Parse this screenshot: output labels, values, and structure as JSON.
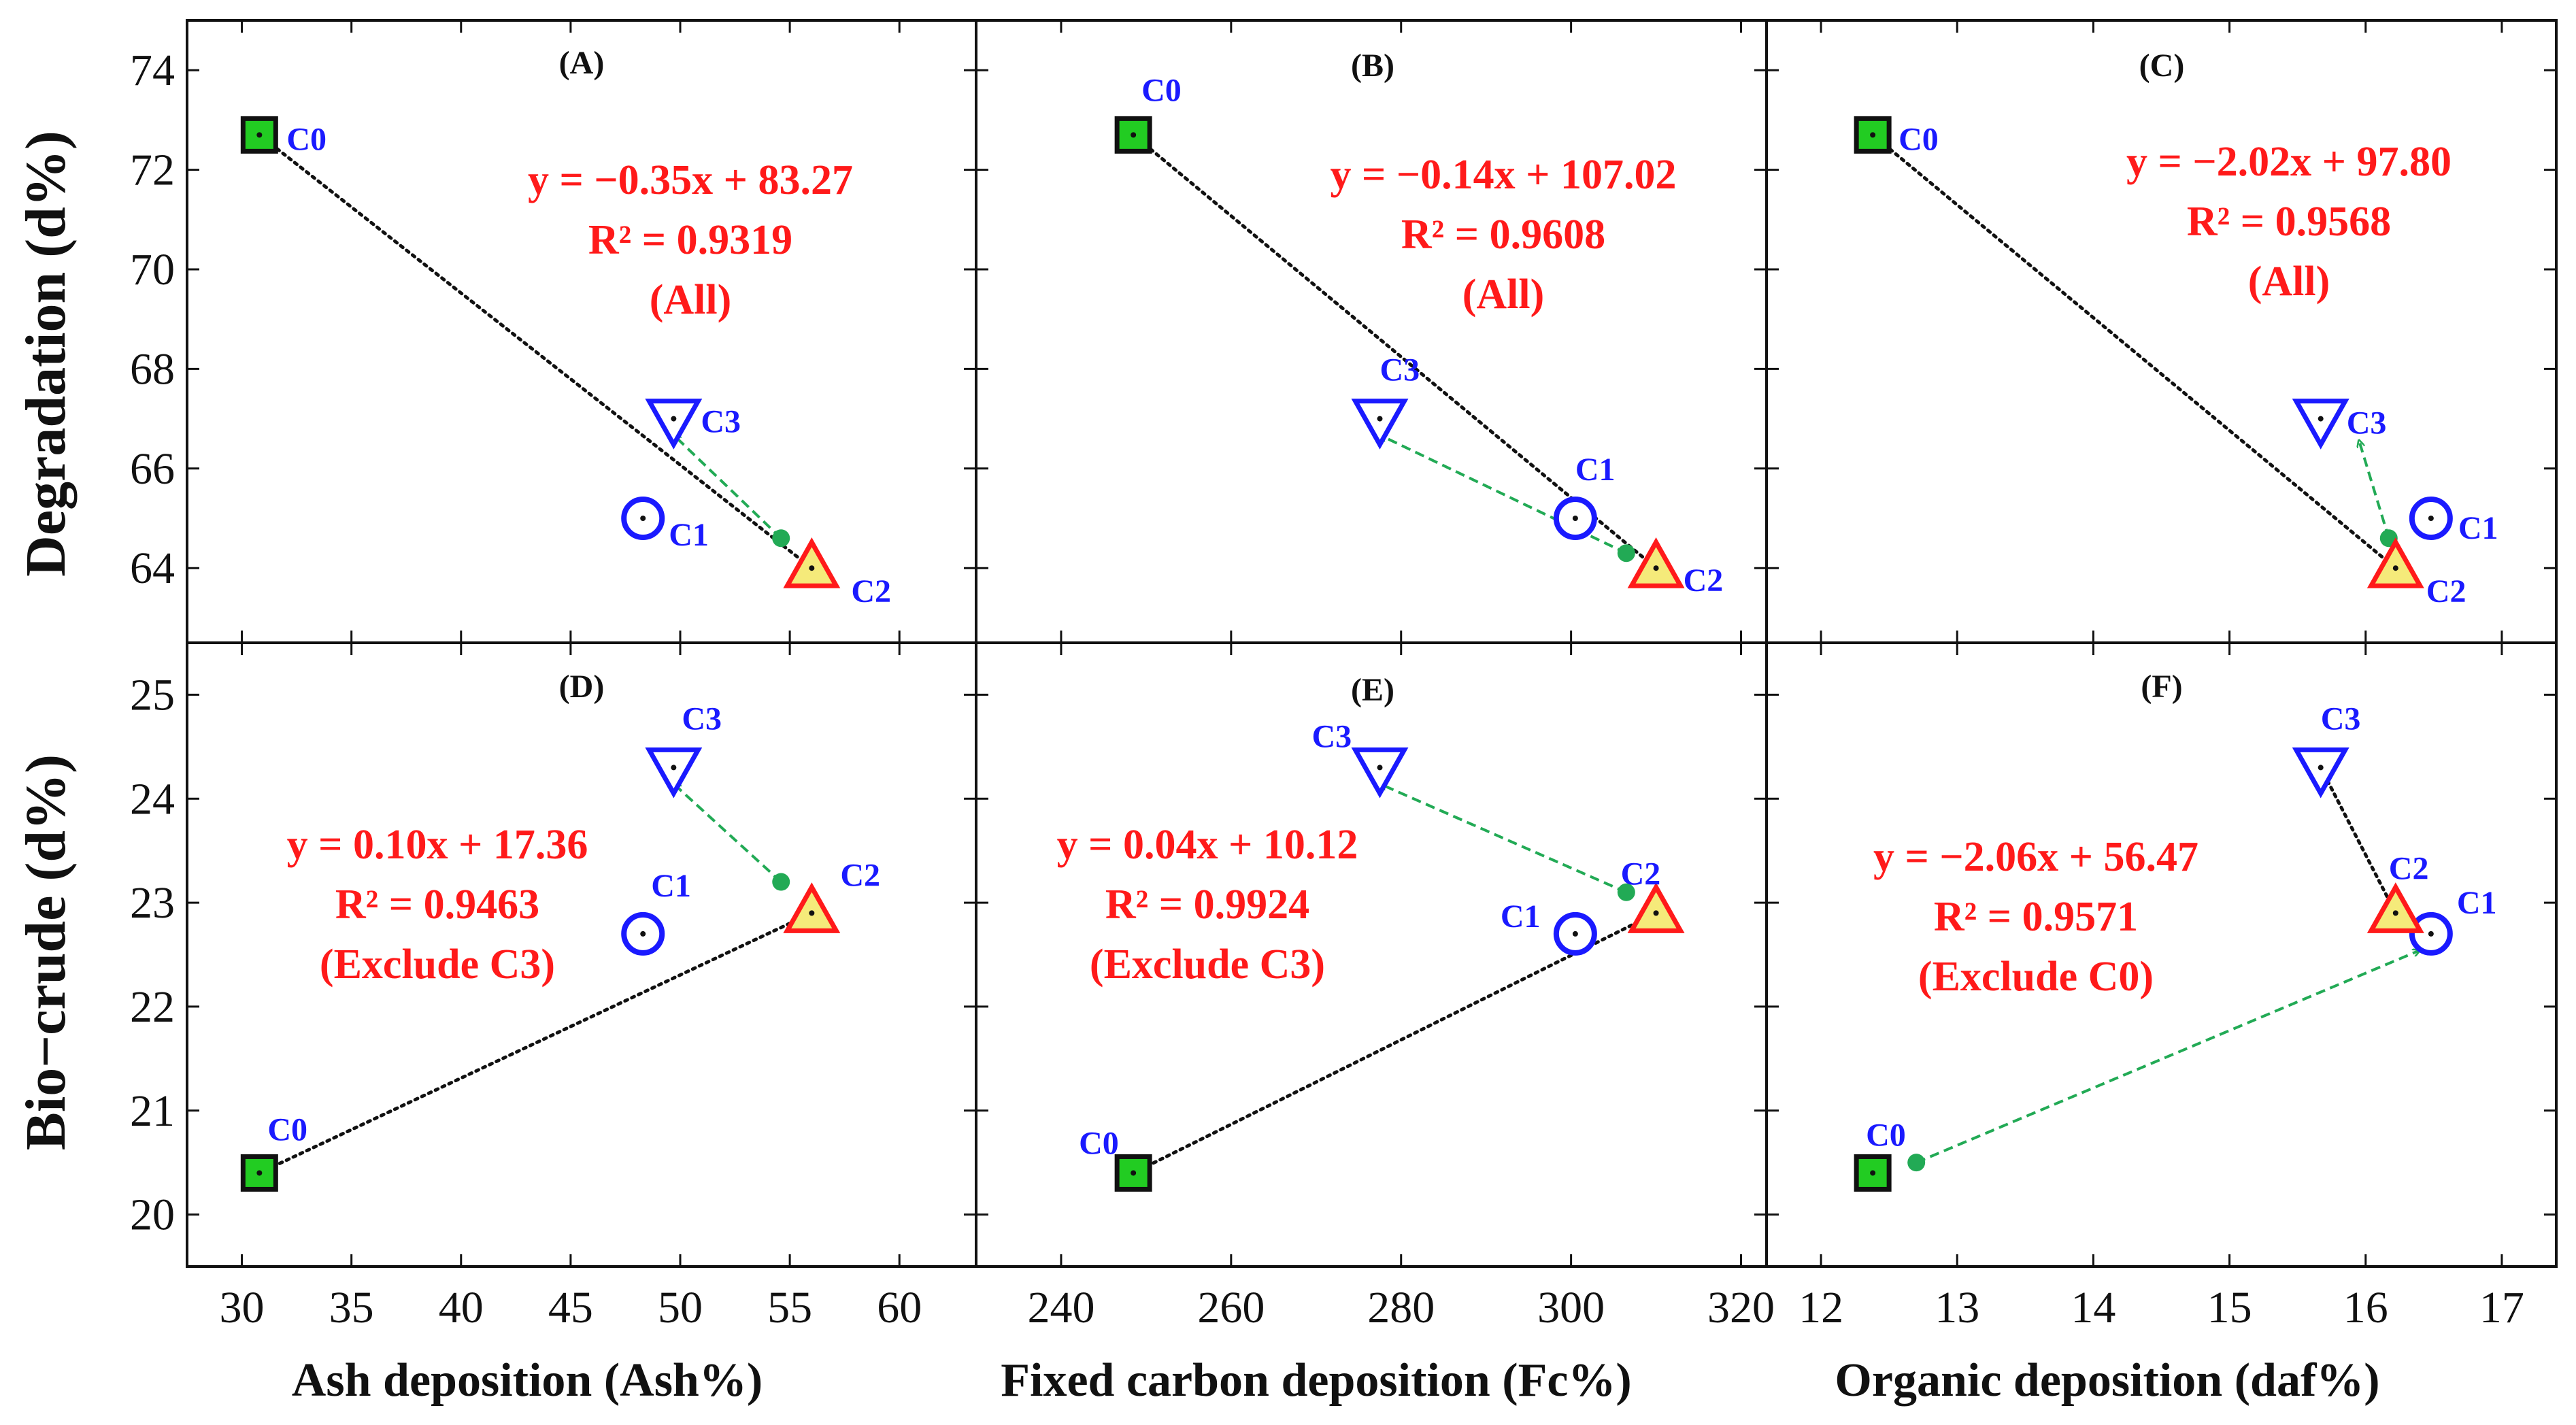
{
  "colors": {
    "marker_blue": "#1a1aff",
    "equation_red": "#ff1a1a",
    "c0_fill": "#22cc22",
    "c2_fill": "#f5ea7a",
    "c2_stroke": "#ff1a1a",
    "arrow_green": "#22aa55",
    "fit_line": "#111111"
  },
  "chart_data": [
    {
      "type": "scatter",
      "panel": "(A)",
      "xlabel": "Ash deposition (Ash%)",
      "ylabel": "Degradation (d%)",
      "xlim": [
        27.5,
        63.5
      ],
      "ylim": [
        62.5,
        75
      ],
      "xticks": [
        30,
        35,
        40,
        45,
        50,
        55,
        60
      ],
      "yticks": [
        64,
        66,
        68,
        70,
        72,
        74
      ],
      "points": [
        {
          "name": "C0",
          "x": 30.8,
          "y": 72.7
        },
        {
          "name": "C1",
          "x": 48.3,
          "y": 65.0
        },
        {
          "name": "C2",
          "x": 56.0,
          "y": 64.0
        },
        {
          "name": "C3",
          "x": 49.7,
          "y": 67.0
        }
      ],
      "fit": {
        "slope": -0.35,
        "intercept": 83.27,
        "x_range": [
          30.8,
          56.0
        ]
      },
      "shifted_point": {
        "x": 54.6,
        "y": 64.6
      },
      "arrow": {
        "from": [
          54.6,
          64.6
        ],
        "to": [
          49.7,
          67.0
        ]
      },
      "equation": [
        "y = −0.35x + 83.27",
        "R² = 0.9319",
        "(All)"
      ]
    },
    {
      "type": "scatter",
      "panel": "(B)",
      "xlabel": "Fixed carbon deposition (Fc%)",
      "ylabel": "Degradation (d%)",
      "xlim": [
        230,
        323
      ],
      "ylim": [
        62.5,
        75
      ],
      "xticks": [
        240,
        260,
        280,
        300,
        320
      ],
      "yticks": [
        64,
        66,
        68,
        70,
        72,
        74
      ],
      "points": [
        {
          "name": "C0",
          "x": 248.5,
          "y": 72.7
        },
        {
          "name": "C1",
          "x": 300.5,
          "y": 65.0
        },
        {
          "name": "C2",
          "x": 310.0,
          "y": 64.0
        },
        {
          "name": "C3",
          "x": 277.5,
          "y": 67.0
        }
      ],
      "fit": {
        "slope": -0.14,
        "intercept": 107.02,
        "x_range": [
          248.5,
          310.0
        ]
      },
      "shifted_point": {
        "x": 306.5,
        "y": 64.3
      },
      "arrow": {
        "from": [
          306.5,
          64.3
        ],
        "to": [
          277.5,
          67.0
        ]
      },
      "equation": [
        "y = −0.14x + 107.02",
        "R² = 0.9608",
        "(All)"
      ]
    },
    {
      "type": "scatter",
      "panel": "(C)",
      "xlabel": "Organic deposition (daf%)",
      "ylabel": "Degradation (d%)",
      "xlim": [
        11.6,
        17.4
      ],
      "ylim": [
        62.5,
        75
      ],
      "xticks": [
        12,
        13,
        14,
        15,
        16,
        17
      ],
      "yticks": [
        64,
        66,
        68,
        70,
        72,
        74
      ],
      "points": [
        {
          "name": "C0",
          "x": 12.38,
          "y": 72.7
        },
        {
          "name": "C1",
          "x": 16.48,
          "y": 65.0
        },
        {
          "name": "C2",
          "x": 16.22,
          "y": 64.0
        },
        {
          "name": "C3",
          "x": 15.67,
          "y": 67.0
        }
      ],
      "fit": {
        "slope": -2.02,
        "intercept": 97.8,
        "x_range": [
          12.38,
          16.48
        ]
      },
      "shifted_point": {
        "x": 16.17,
        "y": 64.6
      },
      "arrow": {
        "from": [
          16.17,
          64.6
        ],
        "to": [
          15.95,
          66.9
        ]
      },
      "equation": [
        "y = −2.02x + 97.80",
        "R² = 0.9568",
        "(All)"
      ]
    },
    {
      "type": "scatter",
      "panel": "(D)",
      "xlabel": "Ash deposition (Ash%)",
      "ylabel": "Bio−crude (d%)",
      "xlim": [
        27.5,
        63.5
      ],
      "ylim": [
        19.5,
        25.5
      ],
      "xticks": [
        30,
        35,
        40,
        45,
        50,
        55,
        60
      ],
      "yticks": [
        20,
        21,
        22,
        23,
        24,
        25
      ],
      "points": [
        {
          "name": "C0",
          "x": 30.8,
          "y": 20.4
        },
        {
          "name": "C1",
          "x": 48.3,
          "y": 22.7
        },
        {
          "name": "C2",
          "x": 56.0,
          "y": 22.9
        },
        {
          "name": "C3",
          "x": 49.7,
          "y": 24.3
        }
      ],
      "fit": {
        "slope": 0.1,
        "intercept": 17.36,
        "x_range": [
          30.8,
          56.0
        ]
      },
      "shifted_point": {
        "x": 54.6,
        "y": 23.2
      },
      "arrow": {
        "from": [
          54.6,
          23.2
        ],
        "to": [
          49.7,
          24.3
        ]
      },
      "equation": [
        "y = 0.10x + 17.36",
        "R² = 0.9463",
        "(Exclude C3)"
      ]
    },
    {
      "type": "scatter",
      "panel": "(E)",
      "xlabel": "Fixed carbon deposition (Fc%)",
      "ylabel": "Bio−crude (d%)",
      "xlim": [
        230,
        323
      ],
      "ylim": [
        19.5,
        25.5
      ],
      "xticks": [
        240,
        260,
        280,
        300,
        320
      ],
      "yticks": [
        20,
        21,
        22,
        23,
        24,
        25
      ],
      "points": [
        {
          "name": "C0",
          "x": 248.5,
          "y": 20.4
        },
        {
          "name": "C1",
          "x": 300.5,
          "y": 22.7
        },
        {
          "name": "C2",
          "x": 310.0,
          "y": 22.9
        },
        {
          "name": "C3",
          "x": 277.5,
          "y": 24.3
        }
      ],
      "fit": {
        "slope": 0.04,
        "intercept": 10.12,
        "x_range": [
          248.5,
          310.0
        ]
      },
      "shifted_point": {
        "x": 306.5,
        "y": 23.1
      },
      "arrow": {
        "from": [
          306.5,
          23.1
        ],
        "to": [
          277.5,
          24.3
        ]
      },
      "equation": [
        "y = 0.04x + 10.12",
        "R² = 0.9924",
        "(Exclude C3)"
      ]
    },
    {
      "type": "scatter",
      "panel": "(F)",
      "xlabel": "Organic deposition (daf%)",
      "ylabel": "Bio−crude (d%)",
      "xlim": [
        11.6,
        17.4
      ],
      "ylim": [
        19.5,
        25.5
      ],
      "xticks": [
        12,
        13,
        14,
        15,
        16,
        17
      ],
      "yticks": [
        20,
        21,
        22,
        23,
        24,
        25
      ],
      "points": [
        {
          "name": "C0",
          "x": 12.38,
          "y": 20.4
        },
        {
          "name": "C1",
          "x": 16.48,
          "y": 22.7
        },
        {
          "name": "C2",
          "x": 16.22,
          "y": 22.9
        },
        {
          "name": "C3",
          "x": 15.67,
          "y": 24.3
        }
      ],
      "fit": {
        "slope": -2.06,
        "intercept": 56.47,
        "x_range": [
          15.67,
          16.48
        ]
      },
      "shifted_point": {
        "x": 12.7,
        "y": 20.5
      },
      "arrow": {
        "from": [
          12.7,
          20.5
        ],
        "to": [
          16.4,
          22.7
        ]
      },
      "equation": [
        "y = −2.06x + 56.47",
        "R² = 0.9571",
        "(Exclude C0)"
      ]
    }
  ]
}
